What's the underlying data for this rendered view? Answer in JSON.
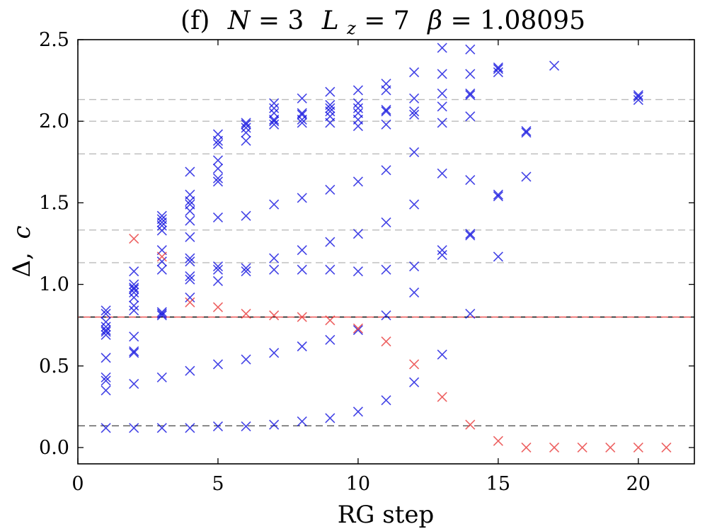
{
  "chart_data": {
    "type": "scatter",
    "title_parts": {
      "label": "(f)",
      "n_sym": "N",
      "n_val": " = 3",
      "l_sym": "L",
      "l_sub": "z",
      "l_val": " = 7",
      "b_sym": "β",
      "b_val": " = 1.08095"
    },
    "xlabel": "RG step",
    "ylabel_main": "Δ,",
    "ylabel_second": "c",
    "xlim": [
      0,
      22
    ],
    "ylim": [
      -0.1,
      2.5
    ],
    "xticks": [
      0,
      5,
      10,
      15,
      20
    ],
    "xtick_labels": [
      "0",
      "5",
      "10",
      "15",
      "20"
    ],
    "yticks": [
      0.0,
      0.5,
      1.0,
      1.5,
      2.0,
      2.5
    ],
    "ytick_labels": [
      "0.0",
      "0.5",
      "1.0",
      "1.5",
      "2.0",
      "2.5"
    ],
    "reference_lines": [
      {
        "y": 2.133,
        "color": "#bbbbbb"
      },
      {
        "y": 2.0,
        "color": "#bbbbbb"
      },
      {
        "y": 1.8,
        "color": "#bbbbbb"
      },
      {
        "y": 1.333,
        "color": "#bbbbbb"
      },
      {
        "y": 1.133,
        "color": "#bbbbbb"
      },
      {
        "y": 0.8,
        "color": "#000000",
        "overlay": "#e84a4a"
      },
      {
        "y": 0.133,
        "color": "#555555"
      }
    ],
    "series": [
      {
        "name": "Delta",
        "color": "#1414e0",
        "points": [
          [
            1,
            0.12
          ],
          [
            1,
            0.35
          ],
          [
            1,
            0.41
          ],
          [
            1,
            0.43
          ],
          [
            1,
            0.55
          ],
          [
            1,
            0.69
          ],
          [
            1,
            0.71
          ],
          [
            1,
            0.72
          ],
          [
            1,
            0.74
          ],
          [
            1,
            0.77
          ],
          [
            1,
            0.82
          ],
          [
            1,
            0.84
          ],
          [
            2,
            0.12
          ],
          [
            2,
            0.39
          ],
          [
            2,
            0.58
          ],
          [
            2,
            0.59
          ],
          [
            2,
            0.68
          ],
          [
            2,
            0.84
          ],
          [
            2,
            0.87
          ],
          [
            2,
            0.92
          ],
          [
            2,
            0.95
          ],
          [
            2,
            0.97
          ],
          [
            2,
            0.98
          ],
          [
            2,
            1.0
          ],
          [
            2,
            1.08
          ],
          [
            3,
            0.12
          ],
          [
            3,
            0.43
          ],
          [
            3,
            0.81
          ],
          [
            3,
            0.83
          ],
          [
            3,
            0.82
          ],
          [
            3,
            1.09
          ],
          [
            3,
            1.14
          ],
          [
            3,
            1.21
          ],
          [
            3,
            1.33
          ],
          [
            3,
            1.36
          ],
          [
            3,
            1.38
          ],
          [
            3,
            1.4
          ],
          [
            3,
            1.42
          ],
          [
            4,
            0.12
          ],
          [
            4,
            0.47
          ],
          [
            4,
            0.92
          ],
          [
            4,
            1.03
          ],
          [
            4,
            1.05
          ],
          [
            4,
            1.14
          ],
          [
            4,
            1.16
          ],
          [
            4,
            1.29
          ],
          [
            4,
            1.39
          ],
          [
            4,
            1.45
          ],
          [
            4,
            1.49
          ],
          [
            4,
            1.51
          ],
          [
            4,
            1.55
          ],
          [
            4,
            1.69
          ],
          [
            5,
            0.13
          ],
          [
            5,
            0.51
          ],
          [
            5,
            1.02
          ],
          [
            5,
            1.09
          ],
          [
            5,
            1.11
          ],
          [
            5,
            1.41
          ],
          [
            5,
            1.63
          ],
          [
            5,
            1.65
          ],
          [
            5,
            1.71
          ],
          [
            5,
            1.76
          ],
          [
            5,
            1.86
          ],
          [
            5,
            1.88
          ],
          [
            5,
            1.92
          ],
          [
            6,
            0.13
          ],
          [
            6,
            0.54
          ],
          [
            6,
            1.08
          ],
          [
            6,
            1.1
          ],
          [
            6,
            1.42
          ],
          [
            6,
            1.88
          ],
          [
            6,
            1.93
          ],
          [
            6,
            1.96
          ],
          [
            6,
            1.98
          ],
          [
            6,
            1.99
          ],
          [
            7,
            0.14
          ],
          [
            7,
            0.58
          ],
          [
            7,
            1.09
          ],
          [
            7,
            1.16
          ],
          [
            7,
            1.49
          ],
          [
            7,
            1.98
          ],
          [
            7,
            2.0
          ],
          [
            7,
            2.01
          ],
          [
            7,
            2.05
          ],
          [
            7,
            2.08
          ],
          [
            7,
            2.11
          ],
          [
            8,
            0.16
          ],
          [
            8,
            0.62
          ],
          [
            8,
            1.09
          ],
          [
            8,
            1.21
          ],
          [
            8,
            1.53
          ],
          [
            8,
            1.99
          ],
          [
            8,
            2.01
          ],
          [
            8,
            2.04
          ],
          [
            8,
            2.05
          ],
          [
            8,
            2.14
          ],
          [
            9,
            0.18
          ],
          [
            9,
            0.66
          ],
          [
            9,
            1.09
          ],
          [
            9,
            1.26
          ],
          [
            9,
            1.58
          ],
          [
            9,
            1.99
          ],
          [
            9,
            2.03
          ],
          [
            9,
            2.06
          ],
          [
            9,
            2.08
          ],
          [
            9,
            2.1
          ],
          [
            9,
            2.18
          ],
          [
            10,
            0.22
          ],
          [
            10,
            0.72
          ],
          [
            10,
            1.08
          ],
          [
            10,
            1.31
          ],
          [
            10,
            1.63
          ],
          [
            10,
            1.97
          ],
          [
            10,
            2.01
          ],
          [
            10,
            2.05
          ],
          [
            10,
            2.08
          ],
          [
            10,
            2.11
          ],
          [
            10,
            2.19
          ],
          [
            11,
            0.29
          ],
          [
            11,
            0.81
          ],
          [
            11,
            1.09
          ],
          [
            11,
            1.38
          ],
          [
            11,
            1.7
          ],
          [
            11,
            1.98
          ],
          [
            11,
            2.06
          ],
          [
            11,
            2.07
          ],
          [
            11,
            2.19
          ],
          [
            11,
            2.23
          ],
          [
            12,
            0.4
          ],
          [
            12,
            0.95
          ],
          [
            12,
            1.11
          ],
          [
            12,
            1.49
          ],
          [
            12,
            1.81
          ],
          [
            12,
            2.04
          ],
          [
            12,
            2.06
          ],
          [
            12,
            2.14
          ],
          [
            12,
            2.3
          ],
          [
            13,
            0.57
          ],
          [
            13,
            1.18
          ],
          [
            13,
            1.21
          ],
          [
            13,
            1.68
          ],
          [
            13,
            1.99
          ],
          [
            13,
            2.09
          ],
          [
            13,
            2.17
          ],
          [
            13,
            2.29
          ],
          [
            13,
            2.45
          ],
          [
            14,
            0.82
          ],
          [
            14,
            1.3
          ],
          [
            14,
            1.31
          ],
          [
            14,
            1.64
          ],
          [
            14,
            2.03
          ],
          [
            14,
            2.16
          ],
          [
            14,
            2.17
          ],
          [
            14,
            2.29
          ],
          [
            14,
            2.44
          ],
          [
            15,
            1.17
          ],
          [
            15,
            1.54
          ],
          [
            15,
            1.55
          ],
          [
            15,
            2.3
          ],
          [
            15,
            2.32
          ],
          [
            15,
            2.33
          ],
          [
            16,
            1.66
          ],
          [
            16,
            1.93
          ],
          [
            16,
            1.94
          ],
          [
            17,
            2.34
          ],
          [
            20,
            2.13
          ],
          [
            20,
            2.15
          ],
          [
            20,
            2.16
          ]
        ]
      },
      {
        "name": "c",
        "color": "#e83a3a",
        "points": [
          [
            2,
            1.28
          ],
          [
            3,
            1.17
          ],
          [
            4,
            0.89
          ],
          [
            5,
            0.86
          ],
          [
            6,
            0.82
          ],
          [
            7,
            0.81
          ],
          [
            8,
            0.8
          ],
          [
            9,
            0.78
          ],
          [
            10,
            0.73
          ],
          [
            11,
            0.65
          ],
          [
            12,
            0.51
          ],
          [
            13,
            0.31
          ],
          [
            14,
            0.14
          ],
          [
            15,
            0.04
          ],
          [
            16,
            0.0
          ],
          [
            17,
            0.0
          ],
          [
            18,
            0.0
          ],
          [
            19,
            0.0
          ],
          [
            20,
            0.0
          ],
          [
            21,
            0.0
          ]
        ]
      }
    ]
  }
}
